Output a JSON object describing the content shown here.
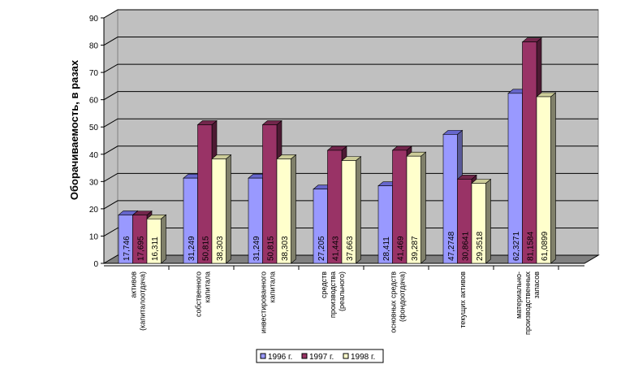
{
  "chart_data": {
    "type": "bar",
    "title": "",
    "xlabel": "",
    "ylabel": "Оборачиваемость, в разах",
    "ylim": [
      0,
      90
    ],
    "yticks": [
      "0",
      "10",
      "20",
      "30",
      "40",
      "50",
      "60",
      "70",
      "80",
      "90"
    ],
    "grid": true,
    "legend_position": "bottom",
    "categories": [
      [
        "активов",
        "(капиталоотдача)"
      ],
      [
        "собственного",
        "капитала"
      ],
      [
        "инвестированного",
        "капитала"
      ],
      [
        "средств",
        "производства",
        "(реального)"
      ],
      [
        "основных средств",
        "(фондоотдача)"
      ],
      [
        "текущих активов"
      ],
      [
        "материально-",
        "производственных",
        "запасов"
      ]
    ],
    "series": [
      {
        "name": "1996 г.",
        "color": "#9999ff",
        "top": "#6666cc",
        "side": "#5a5a99",
        "values": [
          17.746,
          31.249,
          31.249,
          27.205,
          28.411,
          47.2748,
          62.3271
        ],
        "labels": [
          "17,746",
          "31,249",
          "31,249",
          "27,205",
          "28,411",
          "47,2748",
          "62,3271"
        ]
      },
      {
        "name": "1997 г.",
        "color": "#993366",
        "top": "#73264c",
        "side": "#4d1a33",
        "values": [
          17.695,
          50.815,
          50.815,
          41.443,
          41.469,
          30.8641,
          81.1584
        ],
        "labels": [
          "17,695",
          "50,815",
          "50,815",
          "41,443",
          "41,469",
          "30,8641",
          "81,1584"
        ]
      },
      {
        "name": "1998 г.",
        "color": "#ffffcc",
        "top": "#cccc99",
        "side": "#80806a",
        "values": [
          16.311,
          38.303,
          38.303,
          37.663,
          39.287,
          29.3518,
          61.0899
        ],
        "labels": [
          "16,311",
          "38,303",
          "38,303",
          "37,663",
          "39,287",
          "29,3518",
          "61,0899"
        ]
      }
    ]
  }
}
